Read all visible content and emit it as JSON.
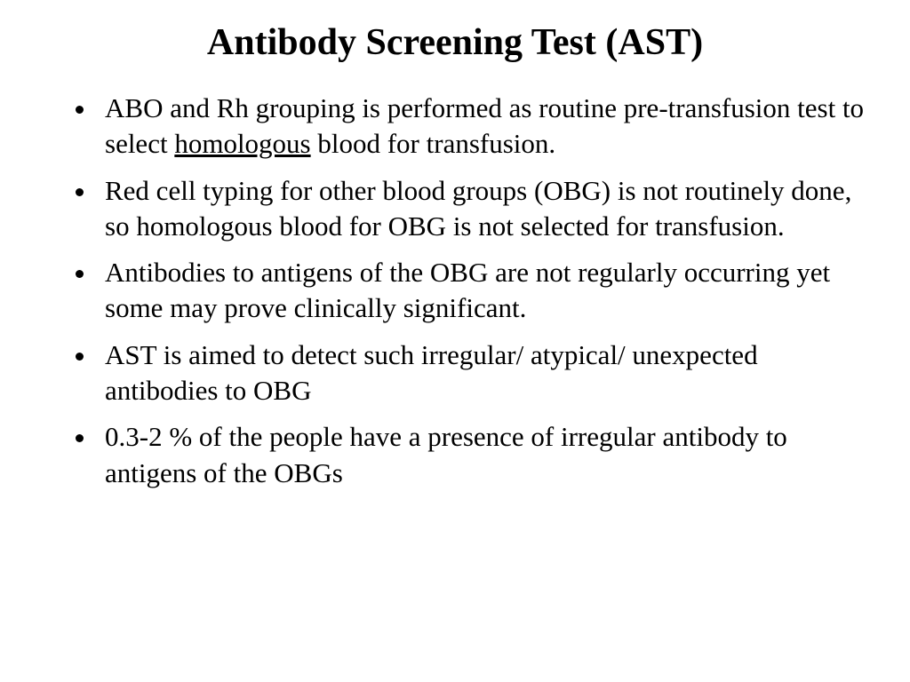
{
  "slide": {
    "title": "Antibody Screening Test (AST)",
    "title_fontsize": 42,
    "title_fontweight": "bold",
    "body_fontsize": 31,
    "font_family": "Times New Roman",
    "background_color": "#ffffff",
    "text_color": "#000000",
    "bullets": [
      {
        "pre": "ABO and Rh grouping is performed as routine pre-transfusion test to select ",
        "underlined": "homologous",
        "post": " blood for transfusion."
      },
      {
        "text": "Red cell typing for other blood groups (OBG) is not routinely done, so homologous blood for OBG is not selected for transfusion."
      },
      {
        "text": "Antibodies to antigens of the OBG are not regularly occurring yet some may prove clinically significant."
      },
      {
        "text": "AST is aimed to detect such irregular/ atypical/ unexpected antibodies to OBG"
      },
      {
        "text": "0.3-2 % of the people have a presence of irregular antibody  to antigens of the OBGs"
      }
    ]
  }
}
